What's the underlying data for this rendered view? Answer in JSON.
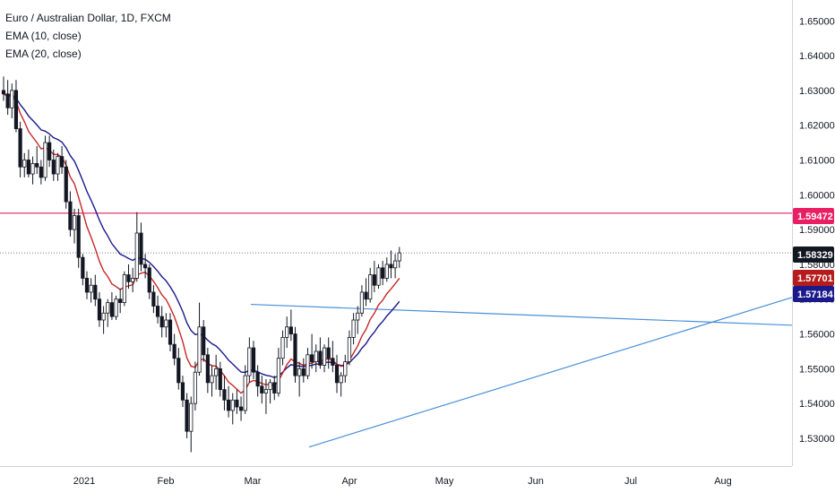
{
  "legend": {
    "symbol": "Euro / Australian Dollar, 1D, FXCM",
    "ema10": "EMA (10, close)",
    "ema20": "EMA (20, close)"
  },
  "chart_data": {
    "type": "candlestick",
    "y_ticks": [
      "1.65000",
      "1.64000",
      "1.63000",
      "1.62000",
      "1.61000",
      "1.60000",
      "1.59000",
      "1.58000",
      "1.57000",
      "1.56000",
      "1.55000",
      "1.54000",
      "1.53000"
    ],
    "y_range": [
      1.522,
      1.656
    ],
    "x_labels": [
      "2021",
      "Feb",
      "Mar",
      "Apr",
      "May",
      "Jun",
      "Jul",
      "Aug"
    ],
    "price_badges": [
      {
        "value": "1.59472",
        "color": "#e91e63",
        "role": "horizontal-resistance"
      },
      {
        "value": "1.58329",
        "color": "#131722",
        "role": "last-price"
      },
      {
        "value": "1.57701",
        "color": "#b71c1c",
        "role": "ema-10"
      },
      {
        "value": "1.57184",
        "color": "#1a1a8c",
        "role": "ema-20"
      }
    ],
    "horizontal_level": 1.59472,
    "last_price": 1.58329,
    "colors": {
      "up": "#ffffff",
      "down": "#131722",
      "ema10": "#c62828",
      "ema20": "#1a1a8c",
      "resistance": "#e91e63",
      "trendline": "#4a90d9"
    },
    "trendlines": [
      {
        "from": [
          "Mar 1",
          1.5685
        ],
        "to": [
          "Aug 22",
          1.5625
        ]
      },
      {
        "from": [
          "Mar 18",
          1.5275
        ],
        "to": [
          "Aug 22",
          1.5705
        ]
      }
    ],
    "candles": [
      [
        1.63,
        1.634,
        1.627,
        1.629
      ],
      [
        1.629,
        1.633,
        1.623,
        1.625
      ],
      [
        1.625,
        1.632,
        1.622,
        1.63
      ],
      [
        1.63,
        1.633,
        1.618,
        1.619
      ],
      [
        1.619,
        1.621,
        1.605,
        1.608
      ],
      [
        1.608,
        1.612,
        1.605,
        1.61
      ],
      [
        1.61,
        1.613,
        1.605,
        1.606
      ],
      [
        1.606,
        1.611,
        1.603,
        1.609
      ],
      [
        1.609,
        1.614,
        1.606,
        1.608
      ],
      [
        1.608,
        1.61,
        1.603,
        1.605
      ],
      [
        1.605,
        1.617,
        1.604,
        1.615
      ],
      [
        1.615,
        1.617,
        1.608,
        1.61
      ],
      [
        1.61,
        1.613,
        1.604,
        1.606
      ],
      [
        1.606,
        1.612,
        1.604,
        1.611
      ],
      [
        1.611,
        1.614,
        1.606,
        1.608
      ],
      [
        1.608,
        1.61,
        1.596,
        1.598
      ],
      [
        1.598,
        1.601,
        1.588,
        1.59
      ],
      [
        1.59,
        1.596,
        1.586,
        1.594
      ],
      [
        1.594,
        1.596,
        1.579,
        1.582
      ],
      [
        1.582,
        1.583,
        1.574,
        1.576
      ],
      [
        1.576,
        1.578,
        1.57,
        1.572
      ],
      [
        1.572,
        1.576,
        1.569,
        1.574
      ],
      [
        1.574,
        1.577,
        1.568,
        1.57
      ],
      [
        1.57,
        1.572,
        1.562,
        1.564
      ],
      [
        1.564,
        1.568,
        1.56,
        1.566
      ],
      [
        1.566,
        1.57,
        1.562,
        1.569
      ],
      [
        1.569,
        1.572,
        1.564,
        1.565
      ],
      [
        1.565,
        1.571,
        1.564,
        1.57
      ],
      [
        1.57,
        1.573,
        1.566,
        1.569
      ],
      [
        1.569,
        1.578,
        1.568,
        1.577
      ],
      [
        1.577,
        1.58,
        1.573,
        1.575
      ],
      [
        1.575,
        1.579,
        1.572,
        1.576
      ],
      [
        1.576,
        1.595,
        1.575,
        1.589
      ],
      [
        1.589,
        1.592,
        1.578,
        1.58
      ],
      [
        1.58,
        1.583,
        1.576,
        1.579
      ],
      [
        1.579,
        1.58,
        1.57,
        1.572
      ],
      [
        1.572,
        1.574,
        1.566,
        1.568
      ],
      [
        1.568,
        1.571,
        1.563,
        1.565
      ],
      [
        1.565,
        1.568,
        1.559,
        1.562
      ],
      [
        1.562,
        1.566,
        1.559,
        1.564
      ],
      [
        1.564,
        1.566,
        1.555,
        1.557
      ],
      [
        1.557,
        1.56,
        1.551,
        1.553
      ],
      [
        1.553,
        1.556,
        1.544,
        1.546
      ],
      [
        1.546,
        1.548,
        1.539,
        1.541
      ],
      [
        1.541,
        1.543,
        1.53,
        1.532
      ],
      [
        1.532,
        1.542,
        1.526,
        1.54
      ],
      [
        1.54,
        1.552,
        1.538,
        1.549
      ],
      [
        1.549,
        1.569,
        1.548,
        1.562
      ],
      [
        1.562,
        1.564,
        1.552,
        1.554
      ],
      [
        1.554,
        1.556,
        1.543,
        1.546
      ],
      [
        1.546,
        1.551,
        1.542,
        1.548
      ],
      [
        1.548,
        1.554,
        1.544,
        1.55
      ],
      [
        1.55,
        1.552,
        1.542,
        1.544
      ],
      [
        1.544,
        1.548,
        1.538,
        1.541
      ],
      [
        1.541,
        1.545,
        1.536,
        1.538
      ],
      [
        1.538,
        1.543,
        1.534,
        1.541
      ],
      [
        1.541,
        1.544,
        1.537,
        1.539
      ],
      [
        1.539,
        1.542,
        1.535,
        1.538
      ],
      [
        1.538,
        1.551,
        1.537,
        1.548
      ],
      [
        1.548,
        1.559,
        1.546,
        1.556
      ],
      [
        1.556,
        1.558,
        1.547,
        1.549
      ],
      [
        1.549,
        1.551,
        1.542,
        1.545
      ],
      [
        1.545,
        1.548,
        1.54,
        1.543
      ],
      [
        1.543,
        1.547,
        1.537,
        1.544
      ],
      [
        1.544,
        1.547,
        1.54,
        1.546
      ],
      [
        1.546,
        1.548,
        1.541,
        1.543
      ],
      [
        1.543,
        1.556,
        1.542,
        1.553
      ],
      [
        1.553,
        1.561,
        1.551,
        1.559
      ],
      [
        1.559,
        1.565,
        1.556,
        1.562
      ],
      [
        1.562,
        1.567,
        1.558,
        1.56
      ],
      [
        1.56,
        1.562,
        1.546,
        1.548
      ],
      [
        1.548,
        1.552,
        1.542,
        1.55
      ],
      [
        1.55,
        1.553,
        1.546,
        1.548
      ],
      [
        1.548,
        1.556,
        1.547,
        1.554
      ],
      [
        1.554,
        1.56,
        1.55,
        1.552
      ],
      [
        1.552,
        1.557,
        1.549,
        1.555
      ],
      [
        1.555,
        1.559,
        1.55,
        1.551
      ],
      [
        1.551,
        1.557,
        1.549,
        1.556
      ],
      [
        1.556,
        1.559,
        1.55,
        1.553
      ],
      [
        1.553,
        1.558,
        1.549,
        1.551
      ],
      [
        1.551,
        1.554,
        1.543,
        1.546
      ],
      [
        1.546,
        1.549,
        1.542,
        1.548
      ],
      [
        1.548,
        1.554,
        1.546,
        1.552
      ],
      [
        1.552,
        1.561,
        1.551,
        1.559
      ],
      [
        1.559,
        1.566,
        1.557,
        1.564
      ],
      [
        1.564,
        1.568,
        1.56,
        1.566
      ],
      [
        1.566,
        1.574,
        1.565,
        1.572
      ],
      [
        1.572,
        1.576,
        1.568,
        1.57
      ],
      [
        1.57,
        1.579,
        1.569,
        1.577
      ],
      [
        1.577,
        1.581,
        1.572,
        1.574
      ],
      [
        1.574,
        1.58,
        1.573,
        1.579
      ],
      [
        1.579,
        1.581,
        1.574,
        1.576
      ],
      [
        1.576,
        1.582,
        1.575,
        1.58
      ],
      [
        1.58,
        1.584,
        1.576,
        1.579
      ],
      [
        1.579,
        1.583,
        1.576,
        1.581
      ],
      [
        1.581,
        1.585,
        1.579,
        1.5833
      ]
    ]
  }
}
